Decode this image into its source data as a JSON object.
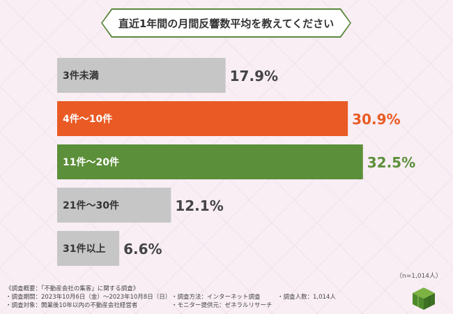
{
  "title": "直近1年間の月間反響数平均を教えてください",
  "chart_data": {
    "type": "bar",
    "orientation": "horizontal",
    "title": "直近1年間の月間反響数平均を教えてください",
    "categories": [
      "3件未満",
      "4件～10件",
      "11件～20件",
      "21件～30件",
      "31件以上"
    ],
    "values": [
      17.9,
      30.9,
      32.5,
      12.1,
      6.6
    ],
    "value_labels": [
      "17.9%",
      "30.9%",
      "32.5%",
      "12.1%",
      "6.6%"
    ],
    "colors": [
      "#c6c6c6",
      "#ea5a24",
      "#5b8f39",
      "#c6c6c6",
      "#c6c6c6"
    ],
    "label_colors": [
      "#444444",
      "#ea5a24",
      "#5b8f39",
      "#444444",
      "#444444"
    ],
    "unit": "%",
    "xlim": [
      0,
      40
    ]
  },
  "sample_size": "（n=1,014人）",
  "notes": {
    "header": "《調査概要：「不動産会社の集客」に関する調査》",
    "period": "・調査期間：2023年10月6日（金）～2023年10月8日（日）",
    "method": "・調査方法：インターネット調査",
    "count": "・調査人数：1,014人",
    "target": "・調査対象：開業後10年以内の不動産会社経営者",
    "monitor": "・モニター提供元：ゼネラルリサーチ"
  }
}
